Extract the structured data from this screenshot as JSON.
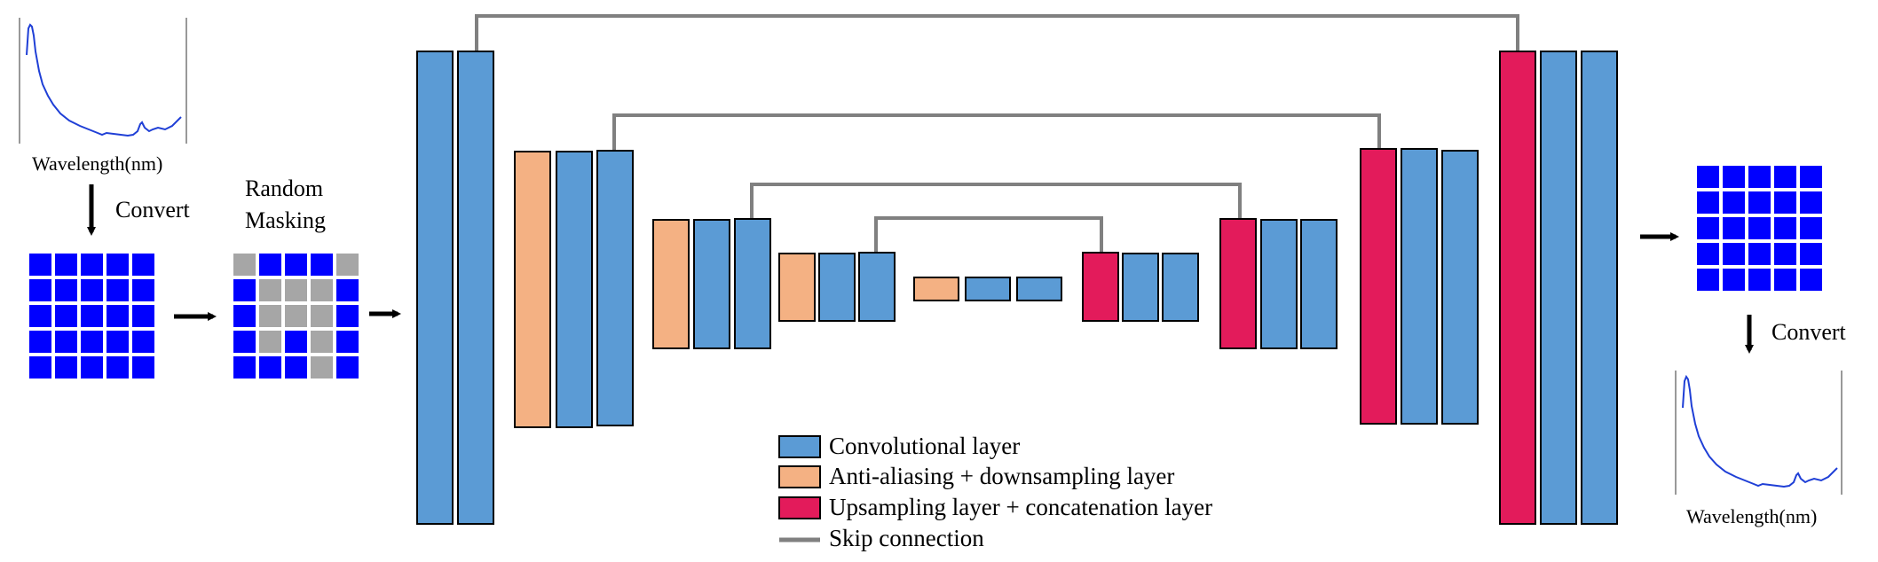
{
  "input": {
    "spectrum_label": "Wavelength(nm)",
    "convert_label": "Convert",
    "masking_label_line1": "Random",
    "masking_label_line2": "Masking"
  },
  "output": {
    "convert_label": "Convert",
    "spectrum_label": "Wavelength(nm)"
  },
  "legend": {
    "conv": "Convolutional layer",
    "down": "Anti-aliasing + downsampling layer",
    "up": "Upsampling layer + concatenation layer",
    "skip": "Skip connection"
  },
  "colors": {
    "conv": "#5b9bd5",
    "down": "#f4b183",
    "up": "#e31b5b",
    "skip": "#808080",
    "pixel": "#0000ff",
    "masked_pixel": "#a6a6a6",
    "spectrum": "#1f3fd6"
  },
  "mask_pattern": [
    [
      1,
      0,
      0,
      0,
      1
    ],
    [
      0,
      1,
      1,
      1,
      0
    ],
    [
      0,
      1,
      1,
      1,
      0
    ],
    [
      0,
      1,
      0,
      1,
      0
    ],
    [
      0,
      0,
      0,
      1,
      0
    ]
  ]
}
